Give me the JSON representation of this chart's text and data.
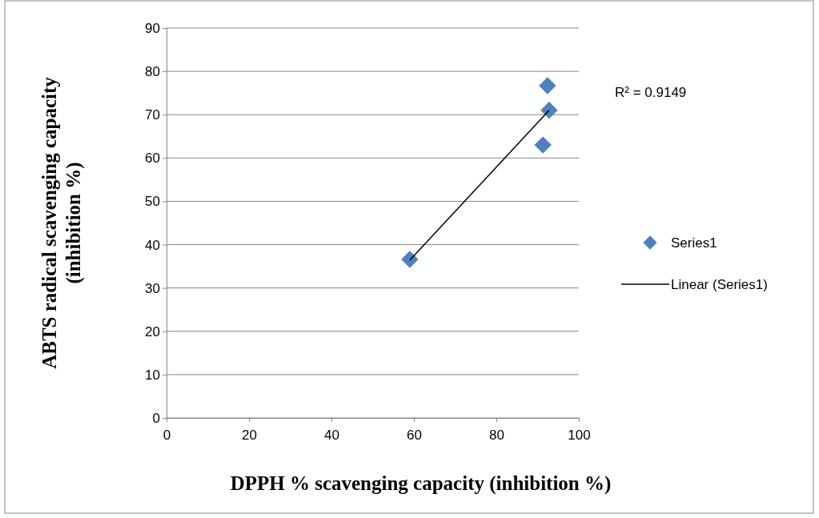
{
  "chart_data": {
    "type": "scatter",
    "xlabel": "DPPH % scavenging capacity (inhibition %)",
    "ylabel": "ABTS radical scavenging capacity (inhibition %)",
    "xlim": [
      0,
      100
    ],
    "xticks": [
      0,
      20,
      40,
      60,
      80,
      100
    ],
    "ylim": [
      0,
      90
    ],
    "yticks": [
      0,
      10,
      20,
      30,
      40,
      50,
      60,
      70,
      80,
      90
    ],
    "grid": "y",
    "legend": "right",
    "annotations": [
      "R² = 0.9149"
    ],
    "series": [
      {
        "name": "Series1",
        "marker": "diamond",
        "color": "#4f81bd",
        "x": [
          59,
          92.4,
          92.8,
          91.3
        ],
        "values": [
          36.6,
          76.7,
          71.0,
          63.0
        ]
      },
      {
        "name": "Linear (Series1)",
        "type": "line",
        "color": "#000000",
        "x": [
          59,
          92.8
        ],
        "values": [
          36.4,
          71.0
        ]
      }
    ]
  }
}
